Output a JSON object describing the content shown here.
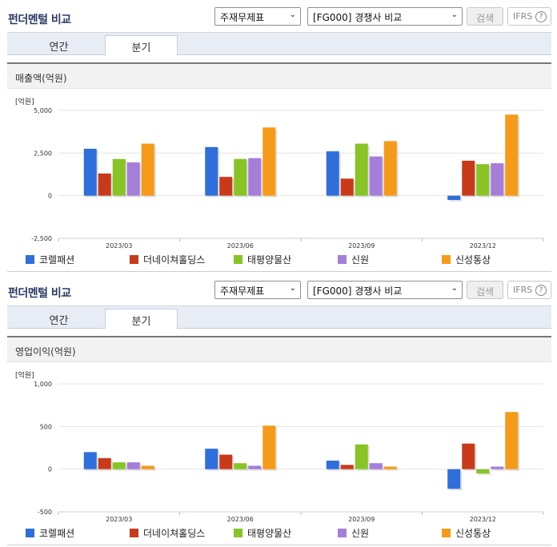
{
  "toolbar": {
    "title": "펀더멘털 비교",
    "theme_select": "주재무제표",
    "compare_select": "[FG000] 경쟁사 비교",
    "search_label": "검색",
    "ifrs_label": "IFRS",
    "help_glyph": "?",
    "dropdown_glyph": "⌄"
  },
  "tabs": {
    "annual": "연간",
    "quarterly": "분기",
    "active": "quarterly"
  },
  "colors": {
    "코렐패션": "#2f6fdc",
    "더네이쳐홀딩스": "#c93a1b",
    "태평양물산": "#88c425",
    "신원": "#a57ed9",
    "신성통상": "#f59b19"
  },
  "legend": [
    "코렐패션",
    "더네이쳐홀딩스",
    "태평양물산",
    "신원",
    "신성통상"
  ],
  "charts": [
    {
      "header": "매출액(억원)",
      "unit": "[억원]",
      "chart_data": {
        "type": "bar",
        "categories": [
          "2023/03",
          "2023/06",
          "2023/09",
          "2023/12"
        ],
        "yticks": [
          "5,000",
          "2,500",
          "0",
          "-2,500"
        ],
        "ylim": [
          -2500,
          5000
        ],
        "series": [
          {
            "name": "코렐패션",
            "values": [
              2750,
              2850,
              2600,
              -250
            ]
          },
          {
            "name": "더네이쳐홀딩스",
            "values": [
              1300,
              1100,
              1000,
              2050
            ]
          },
          {
            "name": "태평양물산",
            "values": [
              2150,
              2150,
              3050,
              1850
            ]
          },
          {
            "name": "신원",
            "values": [
              1950,
              2200,
              2300,
              1900
            ]
          },
          {
            "name": "신성통상",
            "values": [
              3050,
              4000,
              3200,
              4750
            ]
          }
        ]
      }
    },
    {
      "header": "영업이익(억원)",
      "unit": "[억원]",
      "chart_data": {
        "type": "bar",
        "categories": [
          "2023/03",
          "2023/06",
          "2023/09",
          "2023/12"
        ],
        "yticks": [
          "1,000",
          "500",
          "0",
          "-500"
        ],
        "ylim": [
          -500,
          1000
        ],
        "series": [
          {
            "name": "코렐패션",
            "values": [
              200,
              240,
              100,
              -230
            ]
          },
          {
            "name": "더네이쳐홀딩스",
            "values": [
              130,
              170,
              50,
              300
            ]
          },
          {
            "name": "태평양물산",
            "values": [
              80,
              70,
              290,
              -50
            ]
          },
          {
            "name": "신원",
            "values": [
              80,
              40,
              70,
              30
            ]
          },
          {
            "name": "신성통상",
            "values": [
              40,
              510,
              30,
              670
            ]
          }
        ]
      }
    }
  ]
}
